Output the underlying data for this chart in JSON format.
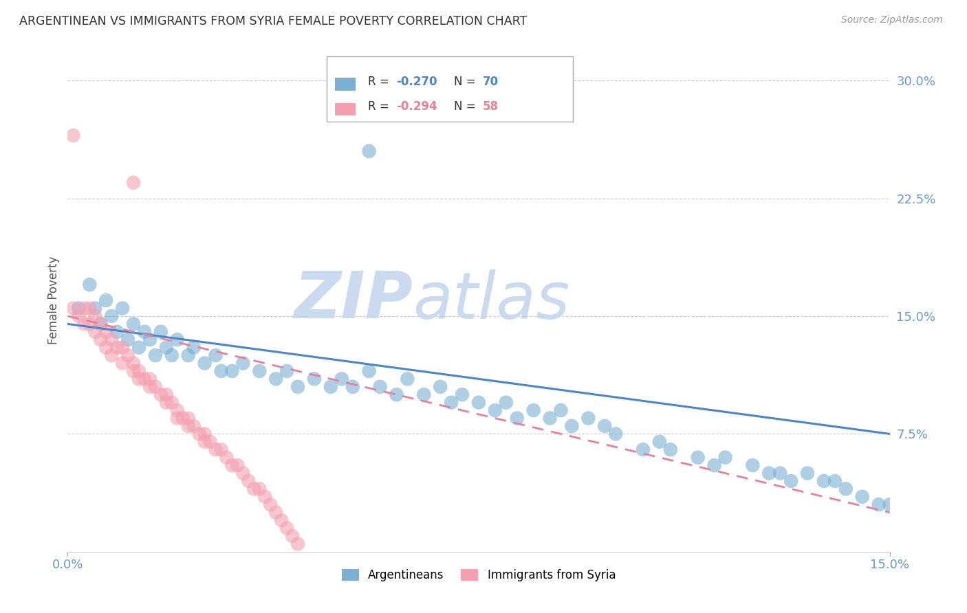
{
  "title": "ARGENTINEAN VS IMMIGRANTS FROM SYRIA FEMALE POVERTY CORRELATION CHART",
  "source": "Source: ZipAtlas.com",
  "ylabel": "Female Poverty",
  "right_yticks": [
    "30.0%",
    "22.5%",
    "15.0%",
    "7.5%"
  ],
  "right_ytick_vals": [
    0.3,
    0.225,
    0.15,
    0.075
  ],
  "xmin": 0.0,
  "xmax": 0.15,
  "ymin": 0.0,
  "ymax": 0.32,
  "blue_color": "#7BAFD4",
  "pink_color": "#F4A0B0",
  "trend_blue_color": "#4A86C8",
  "trend_pink_color": "#E8809A",
  "background_color": "#FFFFFF",
  "grid_color": "#CCCCCC",
  "axis_label_color": "#6699CC",
  "title_color": "#333333",
  "watermark_color": "#C5D8EE",
  "blue_scatter_x": [
    0.002,
    0.004,
    0.005,
    0.006,
    0.007,
    0.008,
    0.009,
    0.01,
    0.011,
    0.012,
    0.013,
    0.014,
    0.015,
    0.016,
    0.017,
    0.018,
    0.019,
    0.02,
    0.022,
    0.023,
    0.025,
    0.027,
    0.028,
    0.03,
    0.032,
    0.035,
    0.038,
    0.04,
    0.042,
    0.045,
    0.048,
    0.05,
    0.052,
    0.055,
    0.057,
    0.06,
    0.062,
    0.065,
    0.068,
    0.07,
    0.072,
    0.075,
    0.078,
    0.08,
    0.082,
    0.085,
    0.088,
    0.09,
    0.092,
    0.095,
    0.098,
    0.1,
    0.105,
    0.108,
    0.11,
    0.115,
    0.118,
    0.12,
    0.125,
    0.128,
    0.13,
    0.132,
    0.135,
    0.138,
    0.14,
    0.142,
    0.145,
    0.148,
    0.15,
    0.055
  ],
  "blue_scatter_y": [
    0.155,
    0.17,
    0.155,
    0.145,
    0.16,
    0.15,
    0.14,
    0.155,
    0.135,
    0.145,
    0.13,
    0.14,
    0.135,
    0.125,
    0.14,
    0.13,
    0.125,
    0.135,
    0.125,
    0.13,
    0.12,
    0.125,
    0.115,
    0.115,
    0.12,
    0.115,
    0.11,
    0.115,
    0.105,
    0.11,
    0.105,
    0.11,
    0.105,
    0.115,
    0.105,
    0.1,
    0.11,
    0.1,
    0.105,
    0.095,
    0.1,
    0.095,
    0.09,
    0.095,
    0.085,
    0.09,
    0.085,
    0.09,
    0.08,
    0.085,
    0.08,
    0.075,
    0.065,
    0.07,
    0.065,
    0.06,
    0.055,
    0.06,
    0.055,
    0.05,
    0.05,
    0.045,
    0.05,
    0.045,
    0.045,
    0.04,
    0.035,
    0.03,
    0.03,
    0.255
  ],
  "pink_scatter_x": [
    0.001,
    0.002,
    0.003,
    0.003,
    0.004,
    0.004,
    0.005,
    0.005,
    0.006,
    0.006,
    0.007,
    0.007,
    0.008,
    0.008,
    0.009,
    0.01,
    0.01,
    0.011,
    0.012,
    0.012,
    0.013,
    0.013,
    0.014,
    0.015,
    0.015,
    0.016,
    0.017,
    0.018,
    0.018,
    0.019,
    0.02,
    0.02,
    0.021,
    0.022,
    0.022,
    0.023,
    0.024,
    0.025,
    0.025,
    0.026,
    0.027,
    0.028,
    0.029,
    0.03,
    0.031,
    0.032,
    0.033,
    0.034,
    0.035,
    0.036,
    0.037,
    0.038,
    0.039,
    0.04,
    0.041,
    0.042,
    0.001,
    0.012
  ],
  "pink_scatter_y": [
    0.155,
    0.15,
    0.155,
    0.145,
    0.155,
    0.145,
    0.15,
    0.14,
    0.145,
    0.135,
    0.14,
    0.13,
    0.135,
    0.125,
    0.13,
    0.13,
    0.12,
    0.125,
    0.12,
    0.115,
    0.115,
    0.11,
    0.11,
    0.11,
    0.105,
    0.105,
    0.1,
    0.1,
    0.095,
    0.095,
    0.09,
    0.085,
    0.085,
    0.085,
    0.08,
    0.08,
    0.075,
    0.075,
    0.07,
    0.07,
    0.065,
    0.065,
    0.06,
    0.055,
    0.055,
    0.05,
    0.045,
    0.04,
    0.04,
    0.035,
    0.03,
    0.025,
    0.02,
    0.015,
    0.01,
    0.005,
    0.265,
    0.235
  ],
  "blue_trend_x": [
    0.0,
    0.15
  ],
  "blue_trend_y": [
    0.145,
    0.075
  ],
  "pink_trend_x": [
    0.0,
    0.15
  ],
  "pink_trend_y": [
    0.15,
    0.025
  ]
}
